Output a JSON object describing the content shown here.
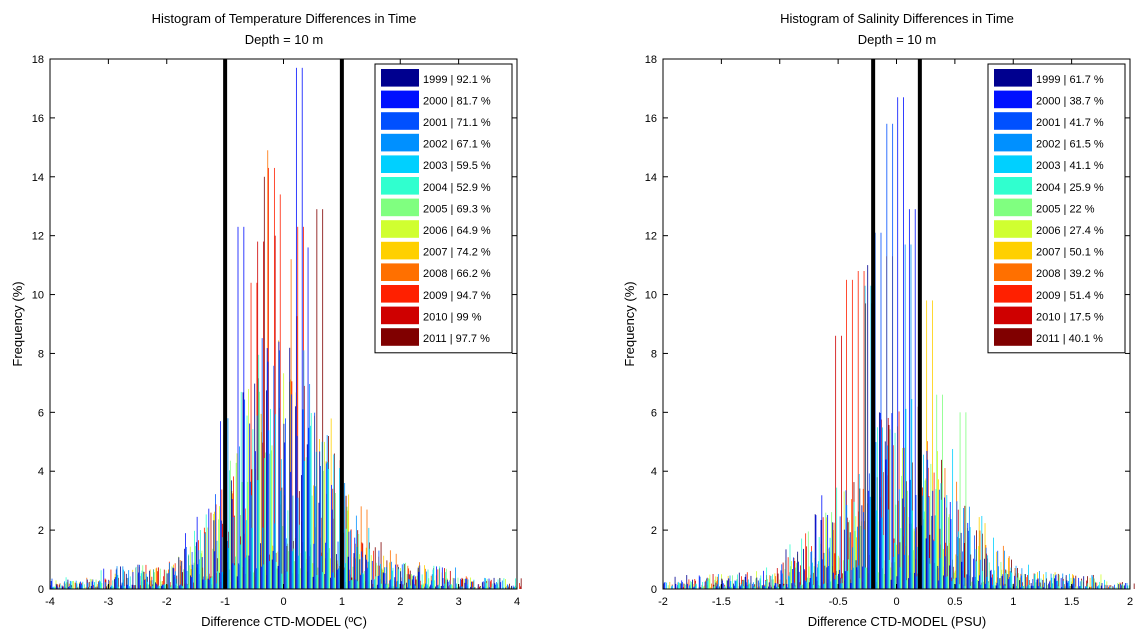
{
  "chart_data": [
    {
      "type": "bar",
      "title": "Histogram of Temperature Differences in Time",
      "subtitle": "Depth = 10 m",
      "xlabel": "Difference CTD-MODEL (ºC)",
      "ylabel": "Frequency (%)",
      "xlim": [
        -4,
        4
      ],
      "ylim": [
        0,
        18
      ],
      "xticks": [
        -4,
        -3,
        -2,
        -1,
        0,
        1,
        2,
        3,
        4
      ],
      "yticks": [
        0,
        2,
        4,
        6,
        8,
        10,
        12,
        14,
        16,
        18
      ],
      "bin_width": 0.1,
      "grid": false,
      "legend_position": "top-right",
      "threshold_lines": [
        -1,
        1
      ],
      "series": [
        {
          "label": "1999 | 92.1 %",
          "color": "#00008f"
        },
        {
          "label": "2000 | 81.7 %",
          "color": "#0010ff"
        },
        {
          "label": "2001 | 71.1 %",
          "color": "#0050ff"
        },
        {
          "label": "2002 | 67.1 %",
          "color": "#0090ff"
        },
        {
          "label": "2003 | 59.5 %",
          "color": "#00d0ff"
        },
        {
          "label": "2004 | 52.9 %",
          "color": "#30ffcf"
        },
        {
          "label": "2005 | 69.3 %",
          "color": "#80ff80"
        },
        {
          "label": "2006 | 64.9 %",
          "color": "#d0ff30"
        },
        {
          "label": "2007 | 74.2 %",
          "color": "#ffd000"
        },
        {
          "label": "2008 | 66.2 %",
          "color": "#ff7000"
        },
        {
          "label": "2009 | 94.7 %",
          "color": "#ff2000"
        },
        {
          "label": "2010 | 99 %",
          "color": "#cf0000"
        },
        {
          "label": "2011 | 97.7 %",
          "color": "#800000"
        }
      ],
      "distribution": {
        "center": -0.05,
        "spread": 0.75,
        "peak": 6.5,
        "tail": 0.8
      },
      "peaks": [
        {
          "x": 0.3,
          "series": 1,
          "value": 17.7
        },
        {
          "x": -0.35,
          "series": 9,
          "value": 14.9
        },
        {
          "x": -0.3,
          "series": 10,
          "value": 14.3
        },
        {
          "x": -0.45,
          "series": 12,
          "value": 14.0
        },
        {
          "x": -0.15,
          "series": 10,
          "value": 13.4
        },
        {
          "x": 0.5,
          "series": 12,
          "value": 12.9
        },
        {
          "x": -0.7,
          "series": 1,
          "value": 12.3
        },
        {
          "x": 0.2,
          "series": 10,
          "value": 12.3
        },
        {
          "x": -0.25,
          "series": 11,
          "value": 12.0
        },
        {
          "x": -0.5,
          "series": 11,
          "value": 11.8
        },
        {
          "x": 0.05,
          "series": 9,
          "value": 11.2
        },
        {
          "x": 0.4,
          "series": 1,
          "value": 11.6
        },
        {
          "x": -0.6,
          "series": 10,
          "value": 10.4
        },
        {
          "x": -1.05,
          "series": 1,
          "value": 5.7
        },
        {
          "x": -0.95,
          "series": 3,
          "value": 5.8
        }
      ]
    },
    {
      "type": "bar",
      "title": "Histogram of Salinity Differences in Time",
      "subtitle": "Depth = 10 m",
      "xlabel": "Difference CTD-MODEL (PSU)",
      "ylabel": "Frequency (%)",
      "xlim": [
        -2,
        2
      ],
      "ylim": [
        0,
        18
      ],
      "xticks": [
        -2,
        -1.5,
        -1,
        -0.5,
        0,
        0.5,
        1,
        1.5,
        2
      ],
      "yticks": [
        0,
        2,
        4,
        6,
        8,
        10,
        12,
        14,
        16,
        18
      ],
      "bin_width": 0.05,
      "grid": false,
      "legend_position": "top-right",
      "threshold_lines": [
        -0.2,
        0.2
      ],
      "series": [
        {
          "label": "1999 | 61.7 %",
          "color": "#00008f"
        },
        {
          "label": "2000 | 38.7 %",
          "color": "#0010ff"
        },
        {
          "label": "2001 | 41.7 %",
          "color": "#0050ff"
        },
        {
          "label": "2002 | 61.5 %",
          "color": "#0090ff"
        },
        {
          "label": "2003 | 41.1 %",
          "color": "#00d0ff"
        },
        {
          "label": "2004 | 25.9 %",
          "color": "#30ffcf"
        },
        {
          "label": "2005 | 22 %",
          "color": "#80ff80"
        },
        {
          "label": "2006 | 27.4 %",
          "color": "#d0ff30"
        },
        {
          "label": "2007 | 50.1 %",
          "color": "#ffd000"
        },
        {
          "label": "2008 | 39.2 %",
          "color": "#ff7000"
        },
        {
          "label": "2009 | 51.4 %",
          "color": "#ff2000"
        },
        {
          "label": "2010 | 17.5 %",
          "color": "#cf0000"
        },
        {
          "label": "2011 | 40.1 %",
          "color": "#800000"
        }
      ],
      "distribution": {
        "center": 0.0,
        "spread": 0.45,
        "peak": 4.5,
        "tail": 0.5
      },
      "peaks": [
        {
          "x": 0.05,
          "series": 1,
          "value": 16.7
        },
        {
          "x": -0.05,
          "series": 2,
          "value": 15.8
        },
        {
          "x": -0.15,
          "series": 2,
          "value": 12.1
        },
        {
          "x": 0.15,
          "series": 1,
          "value": 12.9
        },
        {
          "x": -0.2,
          "series": 0,
          "value": 11.0
        },
        {
          "x": 0.1,
          "series": 3,
          "value": 11.7
        },
        {
          "x": -0.35,
          "series": 10,
          "value": 10.8
        },
        {
          "x": -0.45,
          "series": 10,
          "value": 10.5
        },
        {
          "x": 0.25,
          "series": 8,
          "value": 9.8
        },
        {
          "x": -0.25,
          "series": 4,
          "value": 10.3
        },
        {
          "x": -0.55,
          "series": 11,
          "value": 8.6
        },
        {
          "x": 0.35,
          "series": 6,
          "value": 6.6
        },
        {
          "x": 0.55,
          "series": 6,
          "value": 6.0
        },
        {
          "x": -0.3,
          "series": 12,
          "value": 9.7
        },
        {
          "x": -0.1,
          "series": 9,
          "value": 11.3
        }
      ]
    }
  ]
}
